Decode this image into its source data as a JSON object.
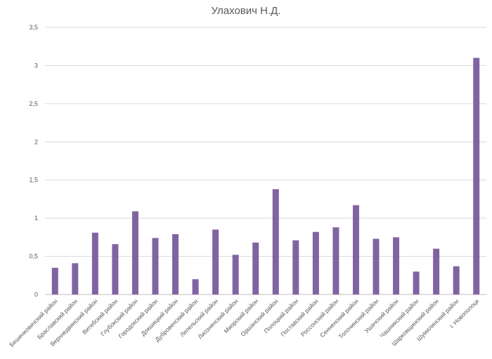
{
  "chart_data": {
    "type": "bar",
    "title": "Улахович Н.Д.",
    "xlabel": "",
    "ylabel": "",
    "ylim": [
      0,
      3.5
    ],
    "y_ticks": [
      "0",
      "0,5",
      "1",
      "1,5",
      "2",
      "2,5",
      "3",
      "3,5"
    ],
    "y_tick_values": [
      0,
      0.5,
      1,
      1.5,
      2,
      2.5,
      3,
      3.5
    ],
    "grid": true,
    "legend": "none",
    "bar_color": "#8064a2",
    "categories": [
      "Бешенковичский район",
      "Браславский район",
      "Верхнедвинский район",
      "Витебский район",
      "Глубокский район",
      "Городокский район",
      "Докшицкий район",
      "Дубровенский район",
      "Лепельский район",
      "Лиозненский район",
      "Миорский район",
      "Оршанский район",
      "Полоцкий район",
      "Поставский район",
      "Россонский район",
      "Сенненский район",
      "Толочинский район",
      "Ушачский район",
      "Чашникский район",
      "Шарковщинский район",
      "Шумилинский район",
      "г. Новополоцк"
    ],
    "values": [
      0.35,
      0.41,
      0.81,
      0.66,
      1.09,
      0.74,
      0.79,
      0.2,
      0.85,
      0.52,
      0.68,
      1.38,
      0.71,
      0.82,
      0.88,
      1.17,
      0.73,
      0.75,
      0.3,
      0.6,
      0.37,
      3.1
    ]
  }
}
